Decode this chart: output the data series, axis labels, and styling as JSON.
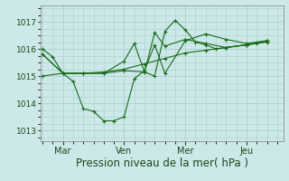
{
  "background_color": "#cce8e8",
  "grid_color": "#aacfcf",
  "line_color": "#1a6b1a",
  "xlabel": "Pression niveau de la mer( hPa )",
  "xlabel_fontsize": 8.5,
  "ylim": [
    1012.6,
    1017.6
  ],
  "yticks": [
    1013,
    1014,
    1015,
    1016,
    1017
  ],
  "ytick_fontsize": 6.5,
  "xtick_labels": [
    "Mar",
    "Ven",
    "Mer",
    "Jeu"
  ],
  "xtick_positions": [
    1,
    4,
    7,
    10
  ],
  "xtick_fontsize": 7,
  "xlim": [
    -0.1,
    11.8
  ],
  "series": [
    {
      "x": [
        0.0,
        0.5,
        1.0,
        1.5,
        2.0,
        2.5,
        3.0,
        3.5,
        4.0,
        4.5,
        5.0,
        5.5,
        6.0,
        7.0,
        8.0,
        9.0,
        10.0,
        10.5,
        11.0
      ],
      "y": [
        1016.0,
        1015.7,
        1015.1,
        1014.8,
        1013.8,
        1013.7,
        1013.35,
        1013.35,
        1013.5,
        1014.9,
        1015.2,
        1016.15,
        1015.1,
        1016.3,
        1016.55,
        1016.35,
        1016.2,
        1016.25,
        1016.3
      ]
    },
    {
      "x": [
        0.0,
        1.0,
        2.0,
        3.0,
        4.0,
        5.0,
        6.0,
        7.0,
        8.0,
        9.0,
        10.0,
        11.0
      ],
      "y": [
        1015.0,
        1015.1,
        1015.1,
        1015.15,
        1015.25,
        1015.45,
        1015.65,
        1015.85,
        1015.95,
        1016.05,
        1016.15,
        1016.3
      ]
    },
    {
      "x": [
        0.0,
        1.0,
        2.0,
        3.0,
        4.0,
        4.5,
        5.0,
        5.5,
        6.0,
        7.0,
        8.0,
        9.0,
        10.0,
        11.0
      ],
      "y": [
        1015.8,
        1015.1,
        1015.1,
        1015.1,
        1015.55,
        1016.2,
        1015.15,
        1016.6,
        1016.1,
        1016.35,
        1016.2,
        1016.05,
        1016.15,
        1016.25
      ]
    },
    {
      "x": [
        0.0,
        1.0,
        2.0,
        3.0,
        4.0,
        5.0,
        5.5,
        6.0,
        6.5,
        7.0,
        7.5,
        8.0,
        8.5,
        9.0,
        10.0,
        10.5,
        11.0
      ],
      "y": [
        1015.8,
        1015.1,
        1015.1,
        1015.1,
        1015.2,
        1015.15,
        1015.0,
        1016.65,
        1017.05,
        1016.7,
        1016.25,
        1016.15,
        1016.0,
        1016.05,
        1016.15,
        1016.2,
        1016.3
      ]
    }
  ]
}
